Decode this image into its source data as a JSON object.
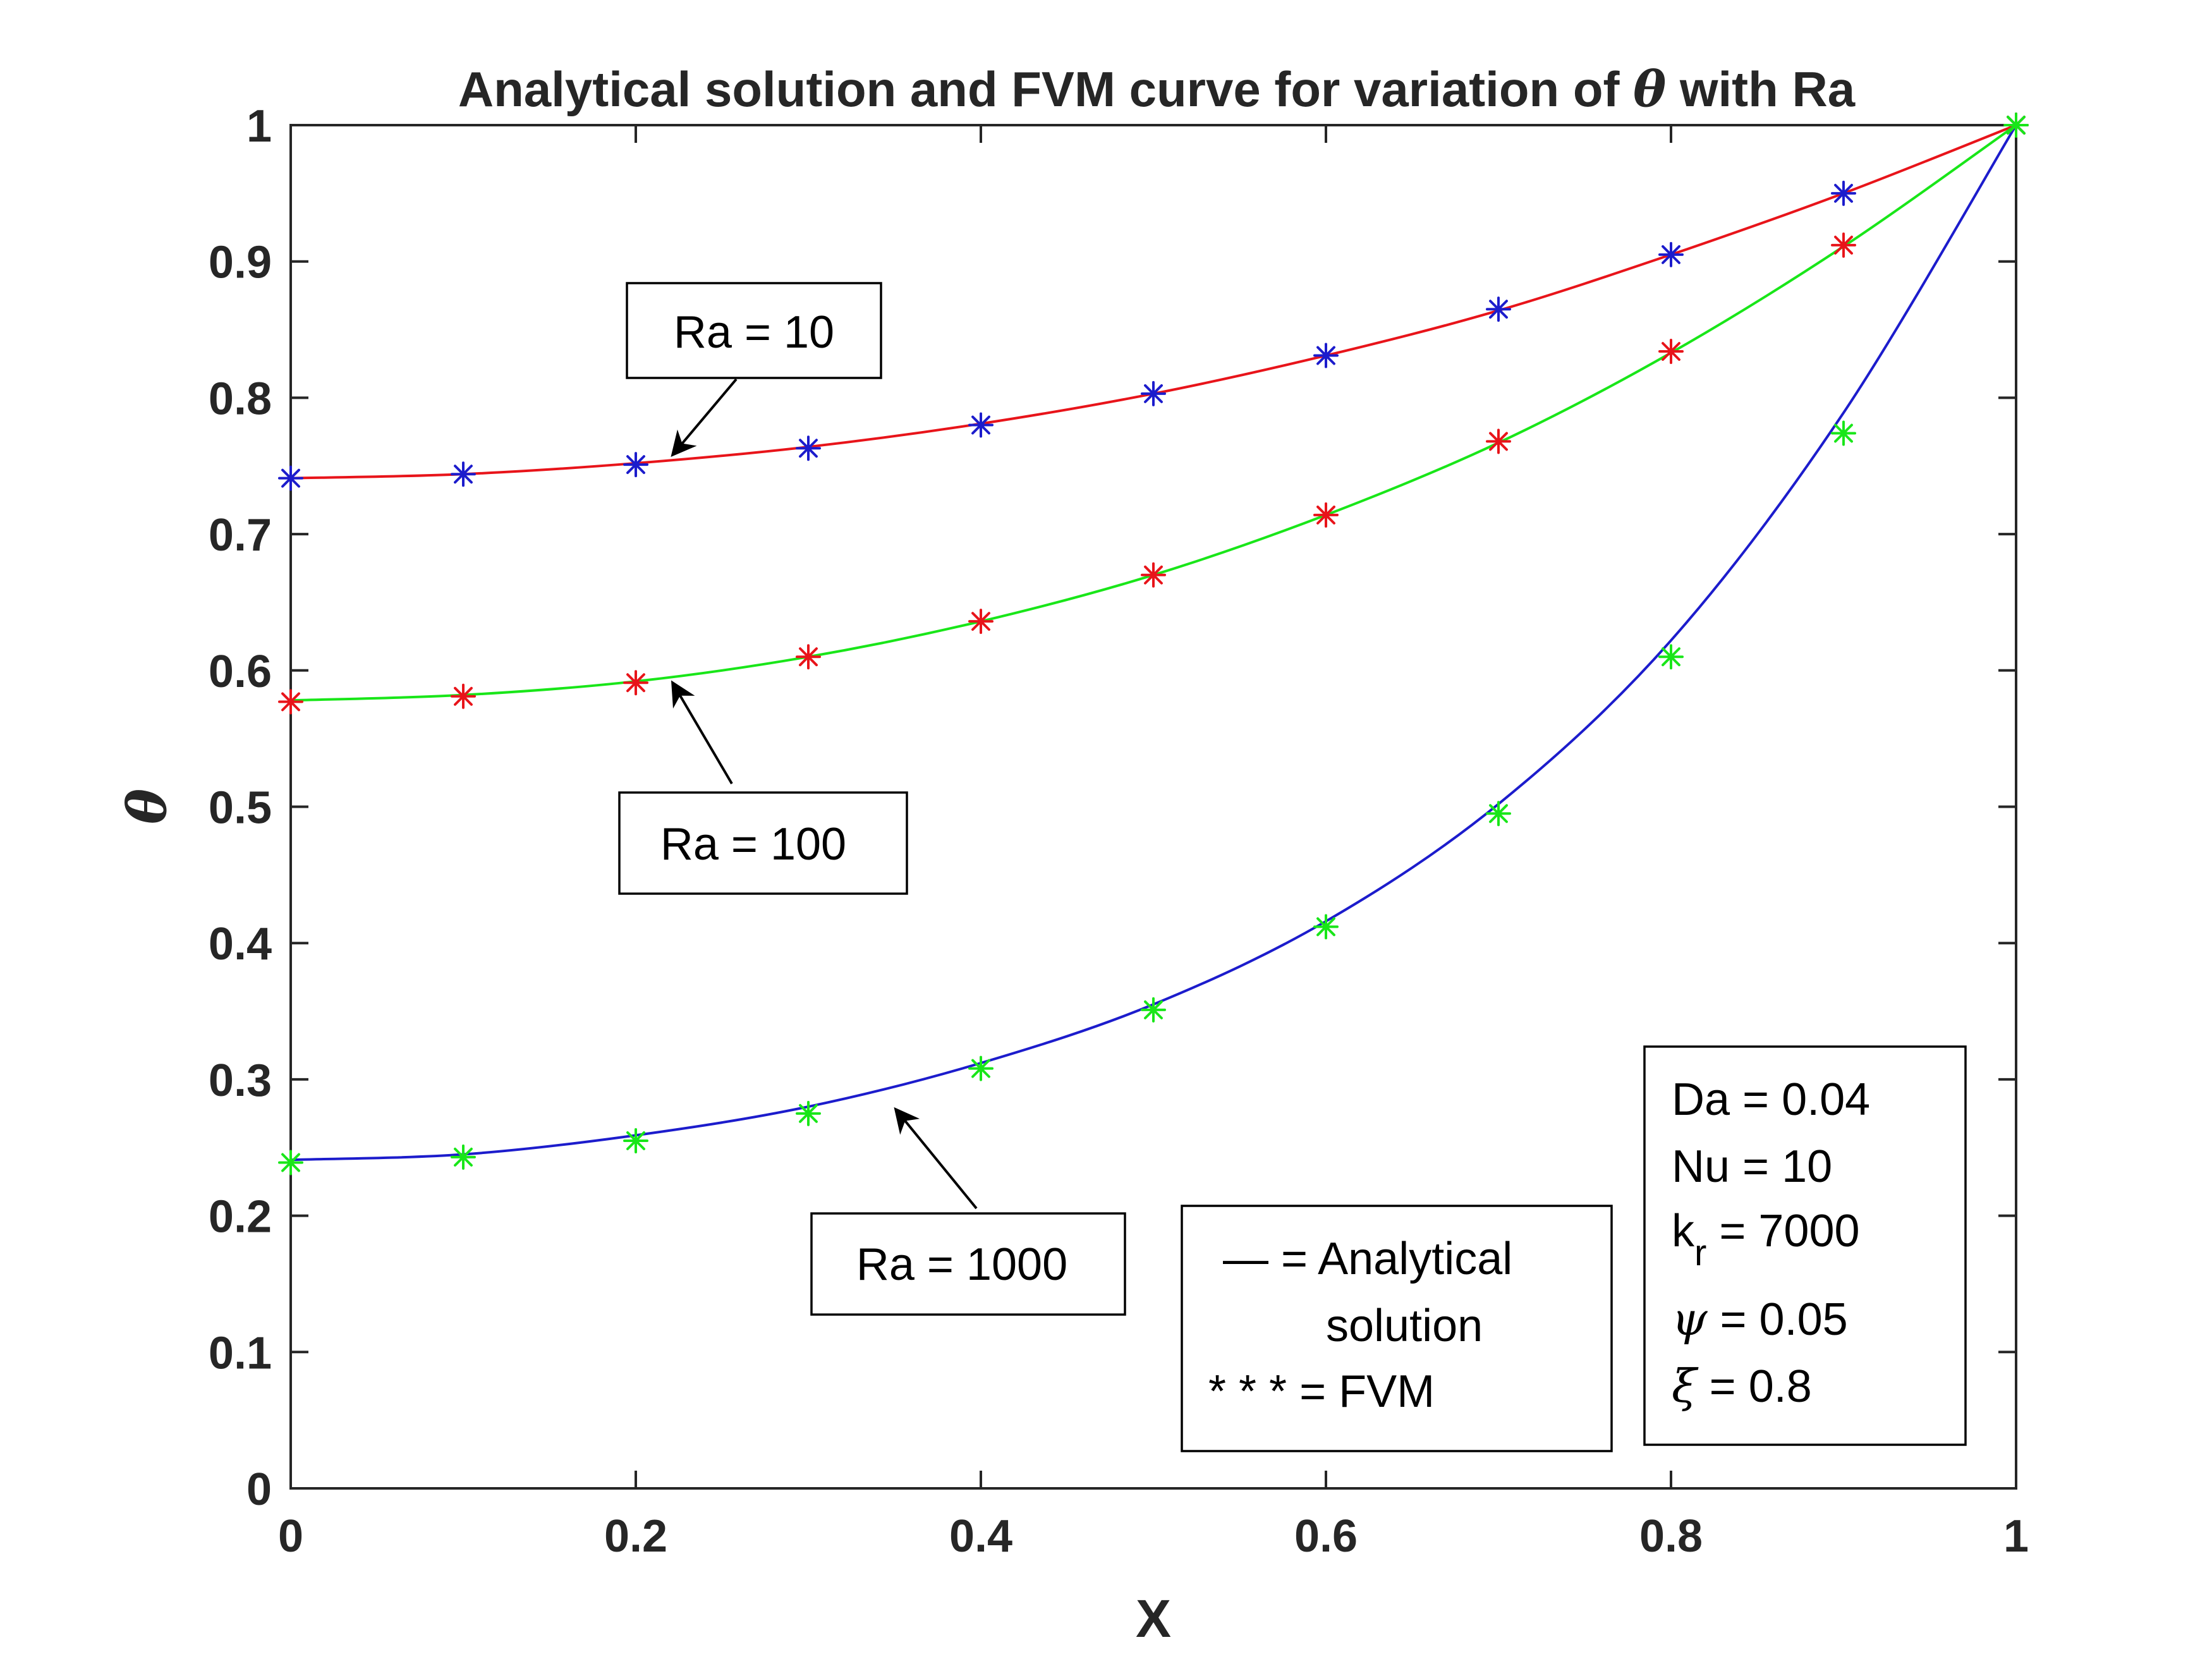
{
  "chart_data": {
    "type": "line",
    "title_prefix": "Analytical solution and FVM curve for variation of",
    "title_symbol": "θ",
    "title_suffix": "with Ra",
    "xlabel": "X",
    "ylabel": "θ",
    "xlim": [
      0,
      1
    ],
    "ylim": [
      0,
      1
    ],
    "xticks": [
      "0",
      "0.2",
      "0.4",
      "0.6",
      "0.8",
      "1"
    ],
    "yticks": [
      "0",
      "0.1",
      "0.2",
      "0.3",
      "0.4",
      "0.5",
      "0.6",
      "0.7",
      "0.8",
      "0.9",
      "1"
    ],
    "grid": false,
    "x": [
      0,
      0.1,
      0.2,
      0.3,
      0.4,
      0.5,
      0.6,
      0.7,
      0.8,
      0.9,
      1.0
    ],
    "series": [
      {
        "label": "Ra = 10",
        "line_color": "#e8141a",
        "marker_color": "#1c1ccc",
        "analytical": [
          0.741,
          0.744,
          0.752,
          0.764,
          0.781,
          0.803,
          0.831,
          0.864,
          0.905,
          0.95,
          1.0
        ],
        "fvm": [
          0.741,
          0.744,
          0.751,
          0.763,
          0.78,
          0.803,
          0.831,
          0.865,
          0.905,
          0.95,
          1.0
        ]
      },
      {
        "label": "Ra = 100",
        "line_color": "#19e619",
        "marker_color": "#e8141a",
        "analytical": [
          0.578,
          0.582,
          0.592,
          0.61,
          0.636,
          0.67,
          0.714,
          0.767,
          0.833,
          0.911,
          1.0
        ],
        "fvm": [
          0.577,
          0.581,
          0.591,
          0.61,
          0.636,
          0.67,
          0.714,
          0.768,
          0.834,
          0.912,
          1.0
        ]
      },
      {
        "label": "Ra = 1000",
        "line_color": "#1c1ccc",
        "marker_color": "#19e619",
        "analytical": [
          0.241,
          0.245,
          0.259,
          0.28,
          0.312,
          0.355,
          0.416,
          0.502,
          0.622,
          0.789,
          1.0
        ],
        "fvm": [
          0.239,
          0.243,
          0.255,
          0.275,
          0.308,
          0.351,
          0.412,
          0.495,
          0.61,
          0.774,
          1.0
        ]
      }
    ],
    "legend": {
      "line1": "— = Analytical",
      "line2": "solution",
      "line3": "* * * = FVM"
    },
    "parameters": {
      "da": "Da = 0.04",
      "nu": "Nu = 10",
      "kr_k": "k",
      "kr_sub": "r",
      "kr_val": " = 7000",
      "psi_sym": "ψ",
      "psi_val": " = 0.05",
      "xi_sym": "ξ",
      "xi_val": " = 0.8"
    }
  }
}
